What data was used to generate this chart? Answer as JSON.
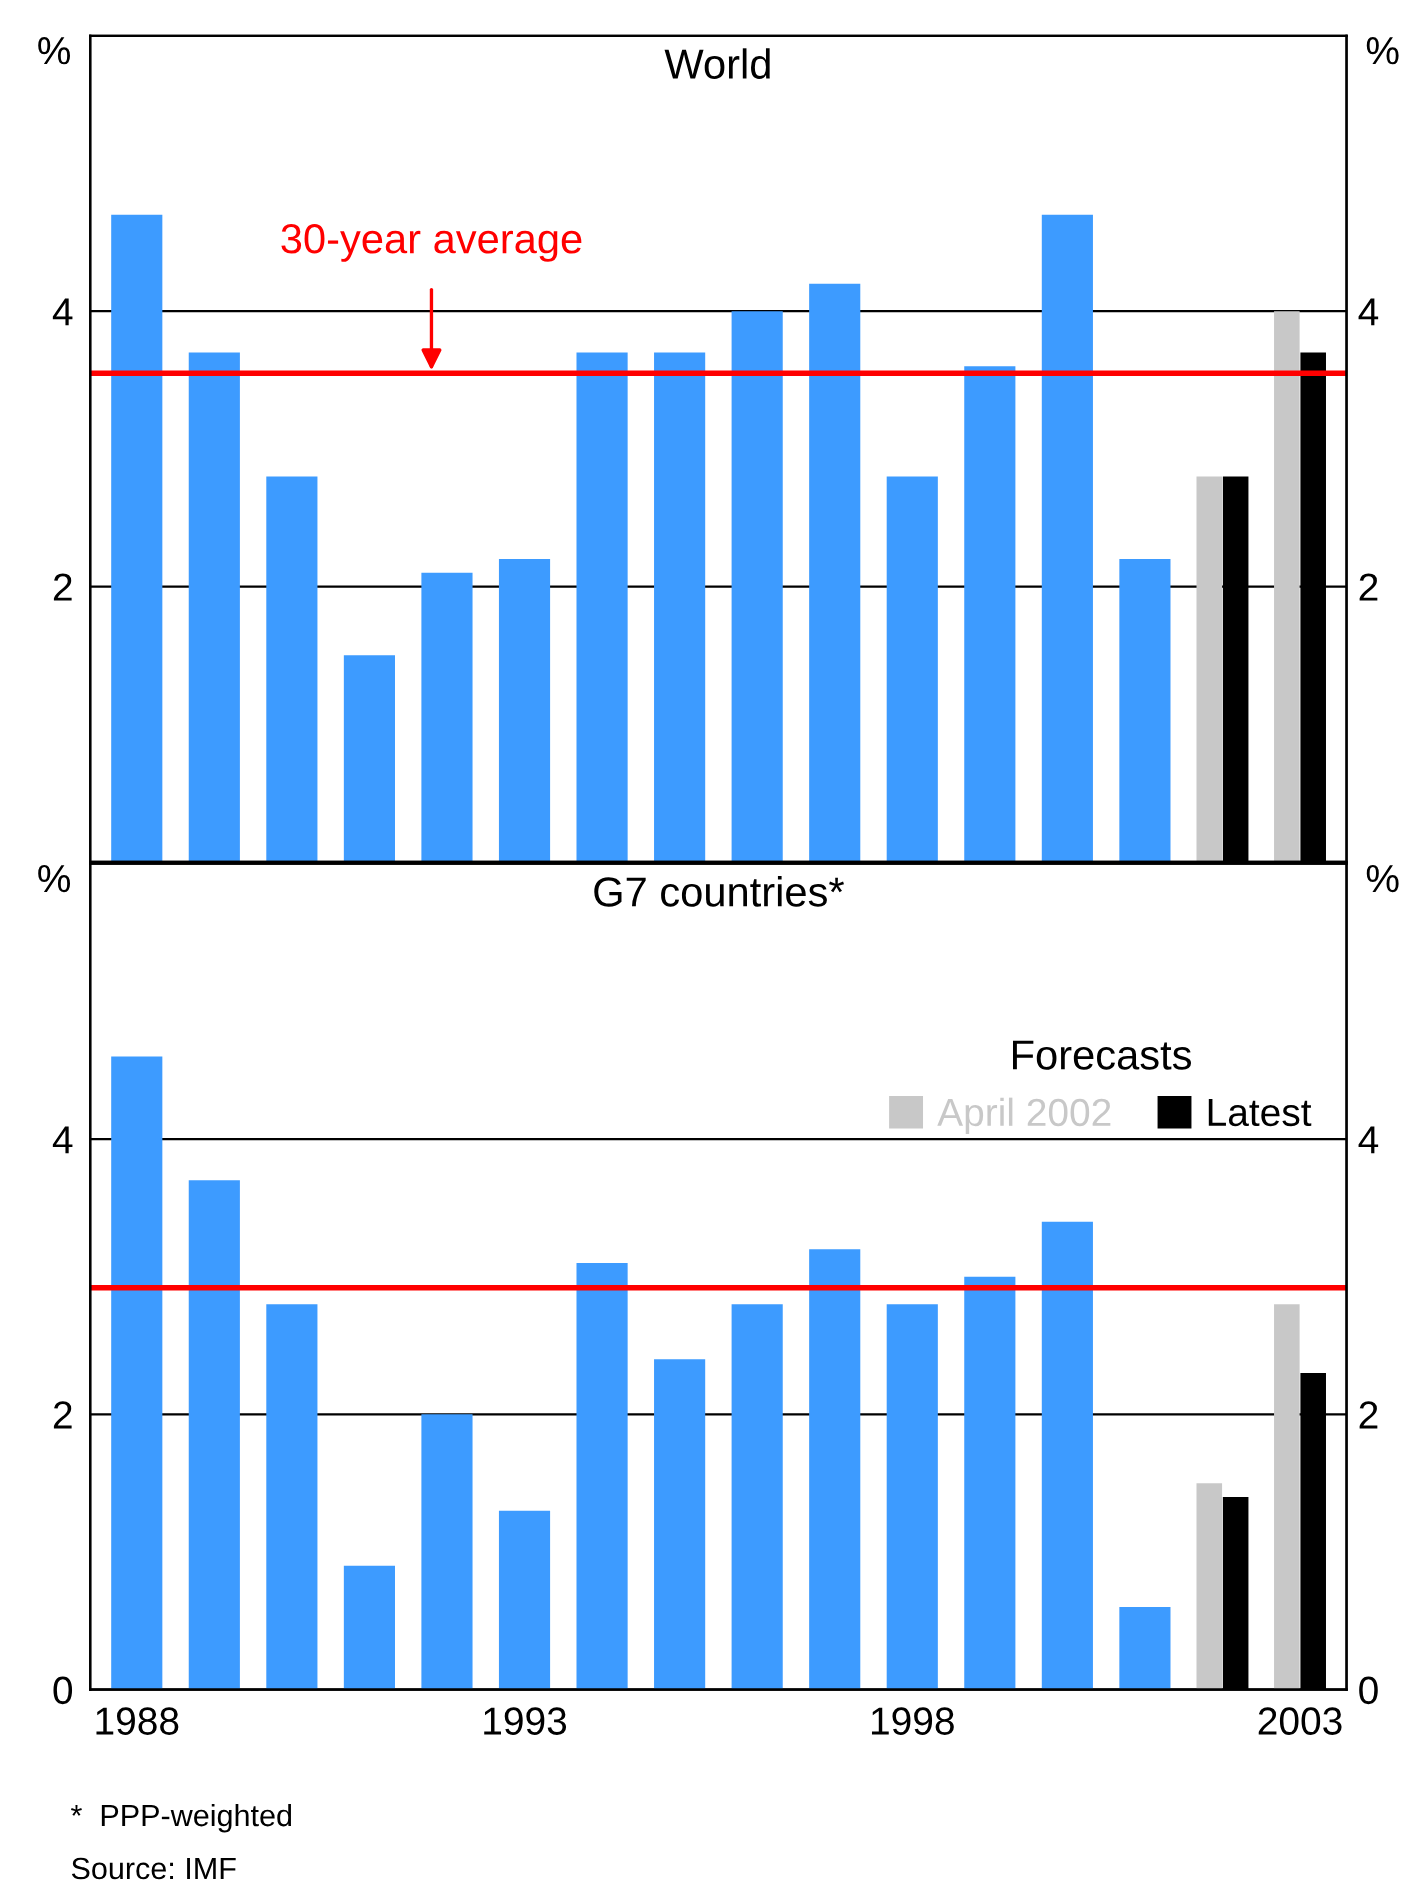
{
  "chart_data": [
    {
      "type": "bar",
      "title": "World",
      "ylabel": "%",
      "y2label": "%",
      "categories": [
        "1988",
        null,
        null,
        null,
        null,
        "1993",
        null,
        null,
        null,
        null,
        "1998",
        null,
        null,
        null,
        null,
        "2003"
      ],
      "series": [
        {
          "color": "#3d9bff",
          "values": [
            4.7,
            3.7,
            2.8,
            1.5,
            2.1,
            2.2,
            3.7,
            3.7,
            4.0,
            4.2,
            2.8,
            3.6,
            4.7,
            2.2,
            null,
            null
          ]
        },
        {
          "color": "#c8c8c8",
          "values": [
            null,
            null,
            null,
            null,
            null,
            null,
            null,
            null,
            null,
            null,
            null,
            null,
            null,
            null,
            2.8,
            4.0
          ]
        },
        {
          "color": "#000000",
          "values": [
            null,
            null,
            null,
            null,
            null,
            null,
            null,
            null,
            null,
            null,
            null,
            null,
            null,
            null,
            2.8,
            3.7
          ]
        }
      ],
      "ref_lines": [
        {
          "axis": "y",
          "value": 3.55,
          "label": "30-year average",
          "color": "#ff0000"
        }
      ],
      "ylim": [
        0,
        6
      ],
      "yticks": [
        2,
        4
      ],
      "y2lim": [
        0,
        6
      ],
      "y2ticks": [
        2,
        4
      ],
      "grid": "y",
      "tick_labels": "y",
      "legend": false
    },
    {
      "type": "bar",
      "title": "G7 countries*",
      "ylabel": "%",
      "y2label": "%",
      "legend_title": "Forecasts",
      "categories": [
        "1988",
        null,
        null,
        null,
        null,
        "1993",
        null,
        null,
        null,
        null,
        "1998",
        null,
        null,
        null,
        null,
        "2003"
      ],
      "series": [
        {
          "color": "#3d9bff",
          "values": [
            4.6,
            3.7,
            2.8,
            0.9,
            2.0,
            1.3,
            3.1,
            2.4,
            2.8,
            3.2,
            2.8,
            3.0,
            3.4,
            0.6,
            null,
            null
          ]
        },
        {
          "name": "April 2002",
          "color": "#c8c8c8",
          "values": [
            null,
            null,
            null,
            null,
            null,
            null,
            null,
            null,
            null,
            null,
            null,
            null,
            null,
            null,
            1.5,
            2.8
          ]
        },
        {
          "name": "Latest",
          "color": "#000000",
          "values": [
            null,
            null,
            null,
            null,
            null,
            null,
            null,
            null,
            null,
            null,
            null,
            null,
            null,
            null,
            1.4,
            2.3
          ]
        }
      ],
      "ref_lines": [
        {
          "axis": "y",
          "value": 2.92,
          "color": "#ff0000"
        }
      ],
      "ylim": [
        0,
        6
      ],
      "yticks": [
        0,
        2,
        4
      ],
      "y2lim": [
        0,
        6
      ],
      "y2ticks": [
        0,
        2,
        4
      ],
      "grid": "y",
      "legend": "top right",
      "annotations": [
        "*  PPP-weighted",
        "Source: IMF"
      ]
    }
  ]
}
